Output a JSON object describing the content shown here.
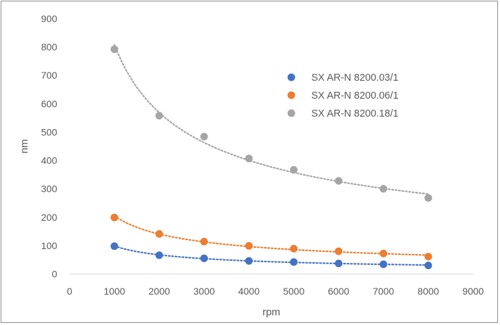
{
  "chart_data": {
    "type": "scatter",
    "title": "",
    "xlabel": "rpm",
    "ylabel": "nm",
    "xlim": [
      0,
      9000
    ],
    "ylim": [
      0,
      900
    ],
    "xticks": [
      0,
      1000,
      2000,
      3000,
      4000,
      5000,
      6000,
      7000,
      8000,
      9000
    ],
    "yticks": [
      0,
      100,
      200,
      300,
      400,
      500,
      600,
      700,
      800,
      900
    ],
    "grid": false,
    "legend": "right",
    "trendline": "power, dotted",
    "series": [
      {
        "name": "SX AR-N 8200.03/1",
        "color": "#4472c4",
        "x": [
          1000,
          2000,
          3000,
          4000,
          5000,
          6000,
          7000,
          8000
        ],
        "y": [
          98,
          66,
          55,
          46,
          42,
          37,
          34,
          30
        ]
      },
      {
        "name": "SX AR-N 8200.06/1",
        "color": "#ed7d31",
        "x": [
          1000,
          2000,
          3000,
          4000,
          5000,
          6000,
          7000,
          8000
        ],
        "y": [
          199,
          141,
          114,
          99,
          89,
          80,
          72,
          61
        ]
      },
      {
        "name": "SX AR-N 8200.18/1",
        "color": "#a5a5a5",
        "x": [
          1000,
          2000,
          3000,
          4000,
          5000,
          6000,
          7000,
          8000
        ],
        "y": [
          792,
          558,
          484,
          407,
          367,
          328,
          300,
          268
        ]
      }
    ]
  }
}
